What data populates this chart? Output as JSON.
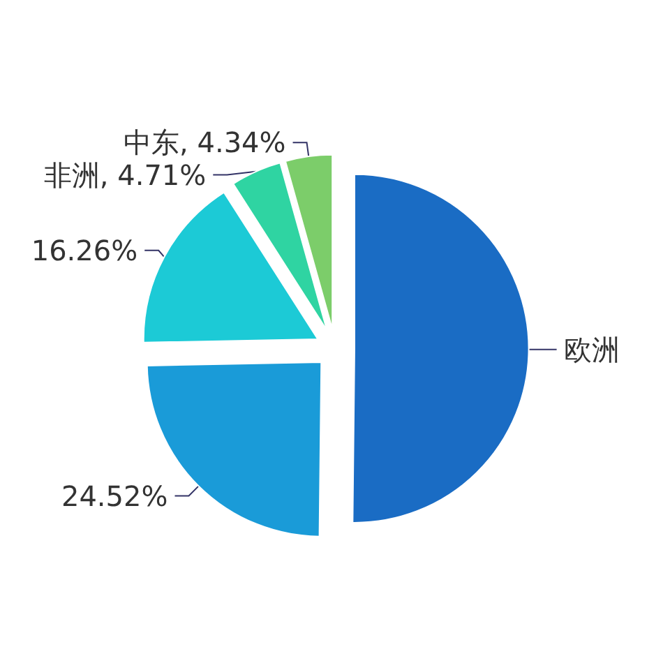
{
  "chart_data": {
    "type": "pie",
    "categories": [
      "欧洲",
      null,
      null,
      "非洲",
      "中东"
    ],
    "values": [
      50.17,
      24.52,
      16.26,
      4.71,
      4.34
    ],
    "colors": [
      "#1a6cc4",
      "#1a9bd8",
      "#1ccad6",
      "#2fd4a2",
      "#7ccd6a"
    ],
    "value_labels": [
      null,
      "24.52%",
      "16.26%",
      "4.71%",
      "4.34%"
    ],
    "legend": false
  }
}
